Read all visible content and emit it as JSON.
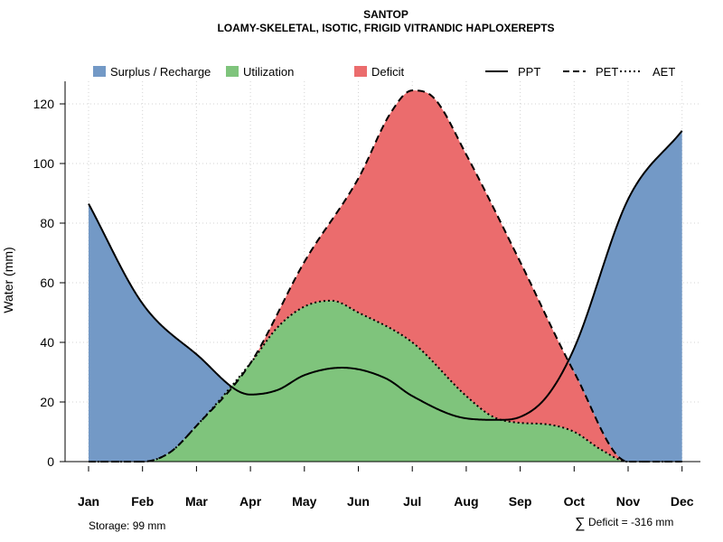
{
  "chart_data": {
    "type": "area",
    "title": "SANTOP",
    "subtitle": "LOAMY-SKELETAL, ISOTIC, FRIGID VITRANDIC HAPLOXEREPTS",
    "ylabel": "Water (mm)",
    "xlabel": "",
    "categories": [
      "Jan",
      "Feb",
      "Mar",
      "Apr",
      "May",
      "Jun",
      "Jul",
      "Aug",
      "Sep",
      "Oct",
      "Nov",
      "Dec"
    ],
    "ylim": [
      0,
      128
    ],
    "yticks": [
      0,
      20,
      40,
      60,
      80,
      100,
      120
    ],
    "grid": true,
    "legend": {
      "placement": "top",
      "items": [
        {
          "label": "Surplus / Recharge",
          "kind": "fill",
          "color": "#7399c6"
        },
        {
          "label": "Utilization",
          "kind": "fill",
          "color": "#7fc47c"
        },
        {
          "label": "Deficit",
          "kind": "fill",
          "color": "#eb6c6d"
        },
        {
          "label": "PPT",
          "kind": "line",
          "dash": "solid"
        },
        {
          "label": "PET",
          "kind": "line",
          "dash": "dashed"
        },
        {
          "label": "AET",
          "kind": "line",
          "dash": "dotted"
        }
      ]
    },
    "series": [
      {
        "name": "PPT",
        "x": [
          1,
          2,
          3,
          4,
          4.5,
          5,
          5.7,
          6.5,
          7,
          8,
          8.6,
          9,
          9.5,
          10,
          11,
          12
        ],
        "values": [
          86.5,
          53,
          36,
          22.5,
          24,
          29,
          31.5,
          28,
          22,
          14.5,
          14,
          15,
          22,
          38,
          88,
          111
        ]
      },
      {
        "name": "PET",
        "x": [
          1,
          2,
          2.5,
          3,
          4,
          5,
          6,
          6.6,
          7,
          7.4,
          8,
          9,
          10,
          11,
          12
        ],
        "values": [
          0,
          0,
          3,
          12,
          33,
          67,
          95,
          117,
          124.5,
          122,
          103,
          67,
          30,
          0,
          0
        ]
      },
      {
        "name": "AET",
        "x": [
          1,
          2,
          2.5,
          3,
          4,
          4.5,
          5,
          5.5,
          6,
          7,
          8,
          8.5,
          9,
          9.5,
          10,
          10.5,
          11,
          12
        ],
        "values": [
          0,
          0,
          3,
          12,
          33,
          45,
          52,
          54,
          50,
          40,
          22,
          15,
          13,
          12.5,
          10,
          4,
          0,
          0
        ]
      }
    ],
    "fills": {
      "surplus": "#7399c6",
      "utilization": "#7fc47c",
      "deficit": "#eb6c6d"
    },
    "annotations": {
      "storage": "Storage: 99 mm",
      "deficit_symbol": "∑",
      "deficit_text": "Deficit = -316 mm"
    }
  }
}
